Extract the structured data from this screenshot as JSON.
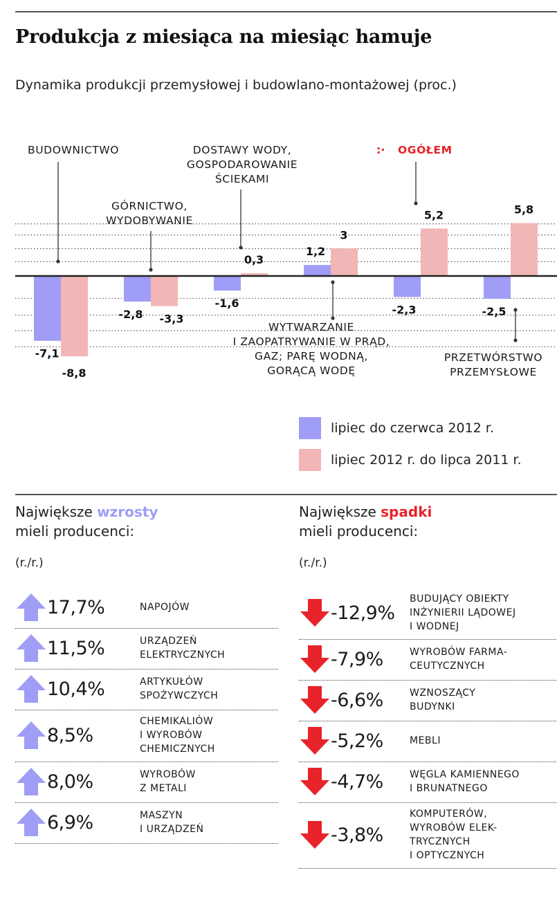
{
  "header": {
    "title": "Produkcja z miesiąca na miesiąc hamuje",
    "subtitle": "Dynamika produkcji przemysłowej i budowlano-montażowej (proc.)"
  },
  "chart_data": {
    "type": "bar",
    "categories": [
      "BUDOWNICTWO",
      "GÓRNICTWO, WYDOBYWANIE",
      "DOSTAWY WODY, GOSPODAROWANIE ŚCIEKAMI",
      "WYTWARZANIE I ZAOPATRYWANIE W PRĄD, GAZ; PARĘ WODNĄ, GORĄCĄ WODĘ",
      "OGÓŁEM",
      "PRZETWÓRSTWO PRZEMYSŁOWE"
    ],
    "category_labels": [
      "BUDOWNICTWO",
      "GÓRNICTWO,\nWYDOBYWANIE",
      "DOSTAWY WODY,\nGOSPODAROWANIE\nŚCIEKAMI",
      "WYTWARZANIE\nI ZAOPATRYWANIE W PRĄD,\nGAZ; PARĘ WODNĄ,\nGORĄCĄ WODĘ",
      "OGÓŁEM",
      "PRZETWÓRSTWO\nPRZEMYSŁOWE"
    ],
    "series": [
      {
        "name": "lipiec do czerwca 2012 r.",
        "color": "#a09df6",
        "values": [
          -7.1,
          -2.8,
          -1.6,
          1.2,
          -2.3,
          -2.5
        ],
        "labels": [
          "-7,1",
          "-2,8",
          "-1,6",
          "1,2",
          "-2,3",
          "-2,5"
        ]
      },
      {
        "name": "lipiec 2012 r. do lipca 2011 r.",
        "color": "#f3b6b6",
        "values": [
          -8.8,
          -3.3,
          0.3,
          3,
          5.2,
          5.8
        ],
        "labels": [
          "-8,8",
          "-3,3",
          "0,3",
          "3",
          "5,2",
          "5,8"
        ]
      }
    ],
    "ylim": [
      -9.5,
      6.5
    ],
    "grid": true,
    "legend": "bottom-right",
    "highlight_color": "#e8232a",
    "xlabel": "",
    "ylabel": ""
  },
  "increases": {
    "heading_pre": "Największe ",
    "heading_kw": "wzrosty",
    "heading_post": "mieli producenci:",
    "unit": "(r./r.)",
    "color": "#a09df6",
    "icon": "arrow-up-icon",
    "items": [
      {
        "value": "17,7%",
        "label": "NAPOJÓW"
      },
      {
        "value": "11,5%",
        "label": "URZĄDZEŃ\nELEKTRYCZNYCH"
      },
      {
        "value": "10,4%",
        "label": "ARTYKUŁÓW\nSPOŻYWCZYCH"
      },
      {
        "value": "8,5%",
        "label": "CHEMIKALIÓW\nI WYROBÓW\nCHEMICZNYCH"
      },
      {
        "value": "8,0%",
        "label": "WYROBÓW\nZ METALI"
      },
      {
        "value": "6,9%",
        "label": "MASZYN\nI URZĄDZEŃ"
      }
    ]
  },
  "decreases": {
    "heading_pre": "Największe ",
    "heading_kw": "spadki",
    "heading_post": "mieli producenci:",
    "unit": "(r./r.)",
    "color": "#e8232a",
    "icon": "arrow-down-icon",
    "items": [
      {
        "value": "-12,9%",
        "label": "BUDUJĄCY OBIEKTY\nINŻYNIERII LĄDOWEJ\nI WODNEJ"
      },
      {
        "value": "-7,9%",
        "label": "WYROBÓW FARMA-\nCEUTYCZNYCH"
      },
      {
        "value": "-6,6%",
        "label": "WZNOSZĄCY\nBUDYNKI"
      },
      {
        "value": "-5,2%",
        "label": "MEBLI"
      },
      {
        "value": "-4,7%",
        "label": "WĘGLA KAMIENNEGO\nI BRUNATNEGO"
      },
      {
        "value": "-3,8%",
        "label": "KOMPUTERÓW,\nWYROBÓW ELEK-\nTRYCZNYCH\nI OPTYCZNYCH"
      }
    ]
  }
}
